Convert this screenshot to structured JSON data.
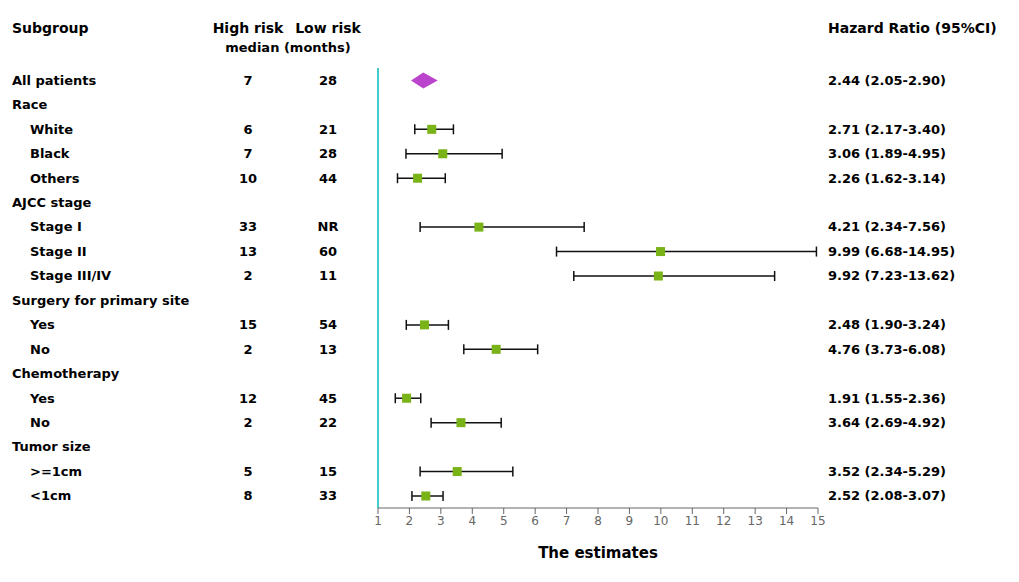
{
  "chart_data": {
    "type": "forest",
    "xlabel": "The estimates",
    "headers": {
      "subgroup": "Subgroup",
      "high": "High risk",
      "low": "Low risk",
      "median": "median (months)",
      "hr": "Hazard Ratio (95%CI)"
    },
    "categories": [
      "All patients",
      "Race",
      "White",
      "Black",
      "Others",
      "AJCC stage",
      "Stage I",
      "Stage II",
      "Stage III/IV",
      "Surgery for primary site",
      "Yes",
      "No",
      "Chemotherapy",
      "Yes",
      "No",
      "Tumor size",
      ">=1cm",
      "<1cm"
    ],
    "values": [
      2.44,
      null,
      2.71,
      3.06,
      2.26,
      null,
      4.21,
      9.99,
      9.92,
      null,
      2.48,
      4.76,
      null,
      1.91,
      3.64,
      null,
      3.52,
      2.52
    ],
    "ci_low": [
      2.05,
      null,
      2.17,
      1.89,
      1.62,
      null,
      2.34,
      6.68,
      7.23,
      null,
      1.9,
      3.73,
      null,
      1.55,
      2.69,
      null,
      2.34,
      2.08
    ],
    "ci_high": [
      2.9,
      null,
      3.4,
      4.95,
      3.14,
      null,
      7.56,
      14.95,
      13.62,
      null,
      3.24,
      6.08,
      null,
      2.36,
      4.92,
      null,
      5.29,
      3.07
    ],
    "hr_labels": [
      "2.44 (2.05-2.90)",
      null,
      "2.71 (2.17-3.40)",
      "3.06 (1.89-4.95)",
      "2.26 (1.62-3.14)",
      null,
      "4.21 (2.34-7.56)",
      "9.99 (6.68-14.95)",
      "9.92 (7.23-13.62)",
      null,
      "2.48 (1.90-3.24)",
      "4.76 (3.73-6.08)",
      null,
      "1.91 (1.55-2.36)",
      "3.64 (2.69-4.92)",
      null,
      "3.52 (2.34-5.29)",
      "2.52 (2.08-3.07)"
    ],
    "high_risk": [
      "7",
      null,
      "6",
      "7",
      "10",
      null,
      "33",
      "13",
      "2",
      null,
      "15",
      "2",
      null,
      "12",
      "2",
      null,
      "5",
      "8"
    ],
    "low_risk": [
      "28",
      null,
      "21",
      "28",
      "44",
      null,
      "NR",
      "60",
      "11",
      null,
      "54",
      "13",
      null,
      "45",
      "22",
      null,
      "15",
      "33"
    ],
    "markers": [
      "diamond",
      null,
      "square",
      "square",
      "square",
      null,
      "square",
      "square",
      "square",
      null,
      "square",
      "square",
      null,
      "square",
      "square",
      null,
      "square",
      "square"
    ],
    "color": "#7AB317",
    "diamond_color": "#BB44CC",
    "ci_color": "#111111",
    "vline_color": "#44CCCC",
    "xlim": [
      1,
      15
    ],
    "xticks": [
      1,
      2,
      3,
      4,
      5,
      6,
      7,
      8,
      9,
      10,
      11,
      12,
      13,
      14,
      15
    ],
    "grid": false
  }
}
